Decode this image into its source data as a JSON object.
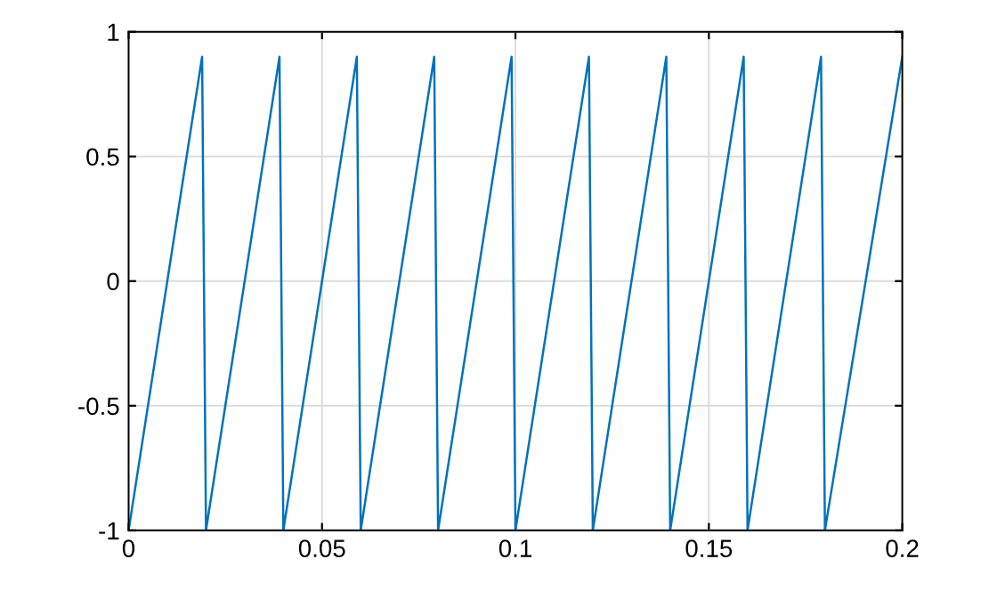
{
  "chart_data": {
    "type": "line",
    "series": [
      {
        "color": "#0072bd",
        "x": [
          0,
          0.019,
          0.02,
          0.039,
          0.04,
          0.059,
          0.06,
          0.079,
          0.08,
          0.099,
          0.1,
          0.119,
          0.12,
          0.139,
          0.14,
          0.159,
          0.16,
          0.179,
          0.18,
          0.2
        ],
        "values": [
          -1,
          0.9,
          -1,
          0.9,
          -1,
          0.9,
          -1,
          0.9,
          -1,
          0.9,
          -1,
          0.9,
          -1,
          0.9,
          -1,
          0.9,
          -1,
          0.9,
          -1,
          0.9
        ]
      }
    ],
    "xlim": [
      0,
      0.2
    ],
    "xticks": [
      0,
      0.05,
      0.1,
      0.15,
      0.2
    ],
    "ylim": [
      -1,
      1
    ],
    "yticks": [
      -1,
      -0.5,
      0,
      0.5,
      1
    ],
    "grid": true
  }
}
